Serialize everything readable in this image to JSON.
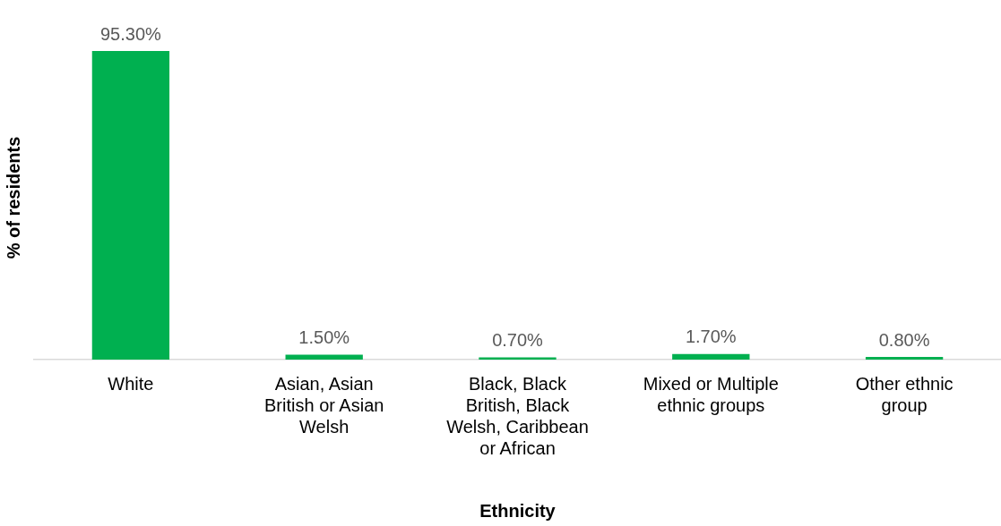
{
  "chart_data": {
    "type": "bar",
    "xlabel": "Ethnicity",
    "ylabel": "% of residents",
    "categories": [
      "White",
      "Asian, Asian British or Asian Welsh",
      "Black, Black British, Black Welsh, Caribbean or African",
      "Mixed or Multiple ethnic groups",
      "Other ethnic group"
    ],
    "values": [
      95.3,
      1.5,
      0.7,
      1.7,
      0.8
    ],
    "value_labels": [
      "95.30%",
      "1.50%",
      "0.70%",
      "1.70%",
      "0.80%"
    ],
    "color": "#00b050",
    "grid": false,
    "legend": false,
    "tick_labels": "x"
  }
}
